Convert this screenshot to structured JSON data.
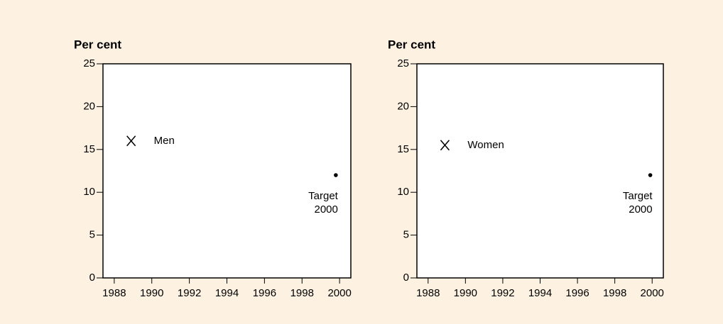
{
  "chart_data": [
    {
      "type": "scatter",
      "ylabel": "Per cent",
      "xlim": [
        1987.4,
        2000.6
      ],
      "xticks": [
        1988,
        1990,
        1992,
        1994,
        1996,
        1998,
        2000
      ],
      "ylim": [
        0,
        25
      ],
      "yticks": [
        0,
        5,
        10,
        15,
        20,
        25
      ],
      "series": [
        {
          "name": "Men",
          "marker": "x",
          "color": "#000000",
          "x": [
            1988.9
          ],
          "values": [
            16
          ]
        },
        {
          "name": "Target 2000",
          "marker": "dot",
          "color": "#000000",
          "x": [
            1999.8
          ],
          "values": [
            12
          ]
        }
      ]
    },
    {
      "type": "scatter",
      "ylabel": "Per cent",
      "xlim": [
        1987.4,
        2000.6
      ],
      "xticks": [
        1988,
        1990,
        1992,
        1994,
        1996,
        1998,
        2000
      ],
      "ylim": [
        0,
        25
      ],
      "yticks": [
        0,
        5,
        10,
        15,
        20,
        25
      ],
      "series": [
        {
          "name": "Women",
          "marker": "x",
          "color": "#000000",
          "x": [
            1988.9
          ],
          "values": [
            15.5
          ]
        },
        {
          "name": "Target 2000",
          "marker": "dot",
          "color": "#000000",
          "x": [
            1999.9
          ],
          "values": [
            12
          ]
        }
      ]
    }
  ]
}
